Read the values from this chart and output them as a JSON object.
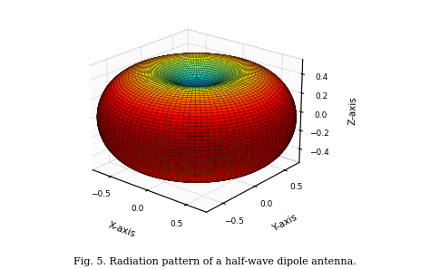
{
  "title": "Fig. 5. Radiation pattern of a half-wave dipole antenna.",
  "xlabel": "X-axis",
  "ylabel": "Y-axis",
  "zlabel": "Z-axis",
  "xlim": [
    -0.75,
    0.75
  ],
  "ylim": [
    -0.75,
    0.75
  ],
  "zlim": [
    -0.55,
    0.55
  ],
  "xticks": [
    -0.5,
    0,
    0.5
  ],
  "yticks": [
    -0.5,
    0,
    0.5
  ],
  "zticks": [
    -0.4,
    -0.2,
    0,
    0.2,
    0.4
  ],
  "colormap": "jet",
  "n_theta": 100,
  "n_phi": 100,
  "background_color": "#ffffff",
  "elev": 22,
  "azim": -50,
  "edge_linewidth": 0.15
}
